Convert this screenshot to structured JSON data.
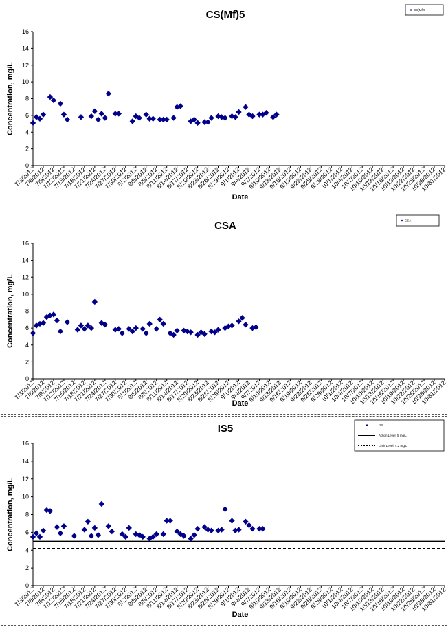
{
  "chart_data": [
    {
      "type": "scatter",
      "title": "CS(Mf)5",
      "xlabel": "Date",
      "ylabel": "Concentration, mg/L",
      "ylim": [
        0,
        16
      ],
      "yticks": [
        "0",
        "2",
        "4",
        "6",
        "8",
        "10",
        "12",
        "14",
        "16"
      ],
      "xticks": [
        "7/3/2012",
        "7/6/2012",
        "7/9/2012",
        "7/12/2012",
        "7/15/2012",
        "7/18/2012",
        "7/21/2012",
        "7/24/2012",
        "7/27/2012",
        "7/30/2012",
        "8/2/2012",
        "8/5/2012",
        "8/8/2012",
        "8/11/2012",
        "8/14/2012",
        "8/17/2012",
        "8/20/2012",
        "8/23/2012",
        "8/26/2012",
        "8/29/2012",
        "9/1/2012",
        "9/4/2012",
        "9/7/2012",
        "9/10/2012",
        "9/13/2012",
        "9/16/2012",
        "9/19/2012",
        "9/22/2012",
        "9/25/2012",
        "9/28/2012",
        "10/1/2012",
        "10/4/2012",
        "10/7/2012",
        "10/10/2012",
        "10/13/2012",
        "10/16/2012",
        "10/19/2012",
        "10/22/2012",
        "10/25/2012",
        "10/28/2012",
        "10/31/2012"
      ],
      "legend_position": "top-right",
      "legend": [
        "CS(Mf)5"
      ],
      "series": [
        {
          "name": "CS(Mf)5",
          "color": "#00008b",
          "marker": "diamond",
          "points": [
            [
              "7/3/2012",
              5.1
            ],
            [
              "7/4/2012",
              5.8
            ],
            [
              "7/5/2012",
              5.6
            ],
            [
              "7/6/2012",
              6.1
            ],
            [
              "7/8/2012",
              8.2
            ],
            [
              "7/9/2012",
              7.8
            ],
            [
              "7/11/2012",
              7.4
            ],
            [
              "7/12/2012",
              6.1
            ],
            [
              "7/13/2012",
              5.5
            ],
            [
              "7/17/2012",
              5.8
            ],
            [
              "7/20/2012",
              5.9
            ],
            [
              "7/21/2012",
              6.5
            ],
            [
              "7/22/2012",
              5.5
            ],
            [
              "7/23/2012",
              6.2
            ],
            [
              "7/24/2012",
              5.7
            ],
            [
              "7/25/2012",
              8.6
            ],
            [
              "7/27/2012",
              6.2
            ],
            [
              "7/28/2012",
              6.2
            ],
            [
              "8/1/2012",
              5.3
            ],
            [
              "8/2/2012",
              5.9
            ],
            [
              "8/3/2012",
              5.7
            ],
            [
              "8/5/2012",
              6.1
            ],
            [
              "8/6/2012",
              5.6
            ],
            [
              "8/7/2012",
              5.6
            ],
            [
              "8/9/2012",
              5.5
            ],
            [
              "8/10/2012",
              5.5
            ],
            [
              "8/11/2012",
              5.5
            ],
            [
              "8/13/2012",
              5.7
            ],
            [
              "8/14/2012",
              7.0
            ],
            [
              "8/15/2012",
              7.1
            ],
            [
              "8/18/2012",
              5.3
            ],
            [
              "8/19/2012",
              5.5
            ],
            [
              "8/20/2012",
              5.1
            ],
            [
              "8/22/2012",
              5.2
            ],
            [
              "8/23/2012",
              5.2
            ],
            [
              "8/24/2012",
              5.7
            ],
            [
              "8/26/2012",
              5.9
            ],
            [
              "8/27/2012",
              5.8
            ],
            [
              "8/28/2012",
              5.7
            ],
            [
              "8/30/2012",
              5.9
            ],
            [
              "8/31/2012",
              5.8
            ],
            [
              "9/1/2012",
              6.4
            ],
            [
              "9/3/2012",
              7.0
            ],
            [
              "9/4/2012",
              6.1
            ],
            [
              "9/5/2012",
              5.9
            ],
            [
              "9/7/2012",
              6.1
            ],
            [
              "9/8/2012",
              6.1
            ],
            [
              "9/9/2012",
              6.3
            ],
            [
              "9/11/2012",
              5.8
            ],
            [
              "9/12/2012",
              6.1
            ]
          ]
        }
      ]
    },
    {
      "type": "scatter",
      "title": "CSA",
      "xlabel": "Date",
      "ylabel": "Concentration, mg/L",
      "ylim": [
        0,
        16
      ],
      "yticks": [
        "0",
        "2",
        "4",
        "6",
        "8",
        "10",
        "12",
        "14",
        "16"
      ],
      "xticks": [
        "7/3/2012",
        "7/6/2012",
        "7/9/2012",
        "7/12/2012",
        "7/15/2012",
        "7/18/2012",
        "7/21/2012",
        "7/24/2012",
        "7/27/2012",
        "7/30/2012",
        "8/2/2012",
        "8/5/2012",
        "8/8/2012",
        "8/11/2012",
        "8/14/2012",
        "8/17/2012",
        "8/20/2012",
        "8/23/2012",
        "8/26/2012",
        "8/29/2012",
        "9/1/2012",
        "9/4/2012",
        "9/7/2012",
        "9/10/2012",
        "9/13/2012",
        "9/16/2012",
        "9/19/2012",
        "9/22/2012",
        "9/25/2012",
        "9/28/2012",
        "10/1/2012",
        "10/4/2012",
        "10/7/2012",
        "10/10/2012",
        "10/13/2012",
        "10/16/2012",
        "10/19/2012",
        "10/22/2012",
        "10/25/2012",
        "10/28/2012",
        "10/31/2012"
      ],
      "legend_position": "top-right",
      "legend": [
        "CSA"
      ],
      "series": [
        {
          "name": "CSA",
          "color": "#00008b",
          "marker": "diamond",
          "points": [
            [
              "7/3/2012",
              5.4
            ],
            [
              "7/4/2012",
              6.3
            ],
            [
              "7/5/2012",
              6.5
            ],
            [
              "7/6/2012",
              6.6
            ],
            [
              "7/7/2012",
              7.3
            ],
            [
              "7/8/2012",
              7.5
            ],
            [
              "7/9/2012",
              7.6
            ],
            [
              "7/10/2012",
              6.9
            ],
            [
              "7/11/2012",
              5.6
            ],
            [
              "7/13/2012",
              6.7
            ],
            [
              "7/16/2012",
              5.8
            ],
            [
              "7/17/2012",
              6.3
            ],
            [
              "7/18/2012",
              5.9
            ],
            [
              "7/19/2012",
              6.3
            ],
            [
              "7/20/2012",
              6.0
            ],
            [
              "7/21/2012",
              9.1
            ],
            [
              "7/23/2012",
              6.6
            ],
            [
              "7/24/2012",
              6.4
            ],
            [
              "7/27/2012",
              5.8
            ],
            [
              "7/28/2012",
              5.9
            ],
            [
              "7/29/2012",
              5.4
            ],
            [
              "7/31/2012",
              5.9
            ],
            [
              "8/1/2012",
              5.6
            ],
            [
              "8/2/2012",
              6.0
            ],
            [
              "8/4/2012",
              5.9
            ],
            [
              "8/5/2012",
              5.4
            ],
            [
              "8/6/2012",
              6.5
            ],
            [
              "8/8/2012",
              5.9
            ],
            [
              "8/9/2012",
              7.0
            ],
            [
              "8/10/2012",
              6.5
            ],
            [
              "8/12/2012",
              5.4
            ],
            [
              "8/13/2012",
              5.2
            ],
            [
              "8/14/2012",
              5.7
            ],
            [
              "8/16/2012",
              5.7
            ],
            [
              "8/17/2012",
              5.6
            ],
            [
              "8/18/2012",
              5.5
            ],
            [
              "8/20/2012",
              5.2
            ],
            [
              "8/21/2012",
              5.5
            ],
            [
              "8/22/2012",
              5.3
            ],
            [
              "8/24/2012",
              5.6
            ],
            [
              "8/25/2012",
              5.5
            ],
            [
              "8/26/2012",
              5.8
            ],
            [
              "8/28/2012",
              6.0
            ],
            [
              "8/29/2012",
              6.2
            ],
            [
              "8/30/2012",
              6.3
            ],
            [
              "9/1/2012",
              6.8
            ],
            [
              "9/2/2012",
              7.2
            ],
            [
              "9/3/2012",
              6.4
            ],
            [
              "9/5/2012",
              6.0
            ],
            [
              "9/6/2012",
              6.1
            ]
          ]
        }
      ]
    },
    {
      "type": "scatter",
      "title": "IS5",
      "xlabel": "Date",
      "ylabel": "Concentration, mg/L",
      "ylim": [
        0,
        16
      ],
      "yticks": [
        "0",
        "2",
        "4",
        "6",
        "8",
        "10",
        "12",
        "14",
        "16"
      ],
      "xticks": [
        "7/3/2012",
        "7/6/2012",
        "7/9/2012",
        "7/12/2012",
        "7/15/2012",
        "7/18/2012",
        "7/21/2012",
        "7/24/2012",
        "7/27/2012",
        "7/30/2012",
        "8/2/2012",
        "8/5/2012",
        "8/8/2012",
        "8/11/2012",
        "8/14/2012",
        "8/17/2012",
        "8/20/2012",
        "8/23/2012",
        "8/26/2012",
        "8/29/2012",
        "9/1/2012",
        "9/4/2012",
        "9/7/2012",
        "9/10/2012",
        "9/13/2012",
        "9/16/2012",
        "9/19/2012",
        "9/22/2012",
        "9/25/2012",
        "9/28/2012",
        "10/1/2012",
        "10/4/2012",
        "10/7/2012",
        "10/10/2012",
        "10/13/2012",
        "10/16/2012",
        "10/19/2012",
        "10/22/2012",
        "10/25/2012",
        "10/28/2012",
        "10/31/2012"
      ],
      "legend_position": "top-right",
      "legend": [
        "IS5",
        "Action Level, 5 mg/L",
        "Limit Level, 4.2 mg/L"
      ],
      "reference_lines": [
        {
          "name": "Action Level, 5 mg/L",
          "value": 5.0,
          "style": "solid"
        },
        {
          "name": "Limit Level, 4.2 mg/L",
          "value": 4.2,
          "style": "dashed"
        }
      ],
      "series": [
        {
          "name": "IS5",
          "color": "#00008b",
          "marker": "diamond",
          "points": [
            [
              "7/3/2012",
              5.5
            ],
            [
              "7/4/2012",
              5.9
            ],
            [
              "7/5/2012",
              5.5
            ],
            [
              "7/6/2012",
              6.2
            ],
            [
              "7/7/2012",
              8.5
            ],
            [
              "7/8/2012",
              8.4
            ],
            [
              "7/10/2012",
              6.6
            ],
            [
              "7/11/2012",
              5.9
            ],
            [
              "7/12/2012",
              6.7
            ],
            [
              "7/15/2012",
              5.6
            ],
            [
              "7/18/2012",
              6.3
            ],
            [
              "7/19/2012",
              7.2
            ],
            [
              "7/20/2012",
              5.6
            ],
            [
              "7/21/2012",
              6.5
            ],
            [
              "7/22/2012",
              5.7
            ],
            [
              "7/23/2012",
              9.2
            ],
            [
              "7/25/2012",
              6.7
            ],
            [
              "7/26/2012",
              6.1
            ],
            [
              "7/29/2012",
              5.8
            ],
            [
              "7/30/2012",
              5.5
            ],
            [
              "7/31/2012",
              6.5
            ],
            [
              "8/2/2012",
              5.8
            ],
            [
              "8/3/2012",
              5.7
            ],
            [
              "8/4/2012",
              5.5
            ],
            [
              "8/6/2012",
              5.3
            ],
            [
              "8/7/2012",
              5.5
            ],
            [
              "8/8/2012",
              5.8
            ],
            [
              "8/10/2012",
              5.8
            ],
            [
              "8/11/2012",
              7.3
            ],
            [
              "8/12/2012",
              7.3
            ],
            [
              "8/14/2012",
              6.1
            ],
            [
              "8/15/2012",
              5.8
            ],
            [
              "8/16/2012",
              5.6
            ],
            [
              "8/18/2012",
              5.3
            ],
            [
              "8/19/2012",
              5.7
            ],
            [
              "8/20/2012",
              6.4
            ],
            [
              "8/22/2012",
              6.6
            ],
            [
              "8/23/2012",
              6.3
            ],
            [
              "8/24/2012",
              6.2
            ],
            [
              "8/26/2012",
              6.2
            ],
            [
              "8/27/2012",
              6.3
            ],
            [
              "8/28/2012",
              8.6
            ],
            [
              "8/30/2012",
              7.3
            ],
            [
              "8/31/2012",
              6.2
            ],
            [
              "9/1/2012",
              6.3
            ],
            [
              "9/3/2012",
              7.2
            ],
            [
              "9/4/2012",
              6.8
            ],
            [
              "9/5/2012",
              6.4
            ],
            [
              "9/7/2012",
              6.4
            ],
            [
              "9/8/2012",
              6.4
            ]
          ]
        }
      ]
    }
  ]
}
